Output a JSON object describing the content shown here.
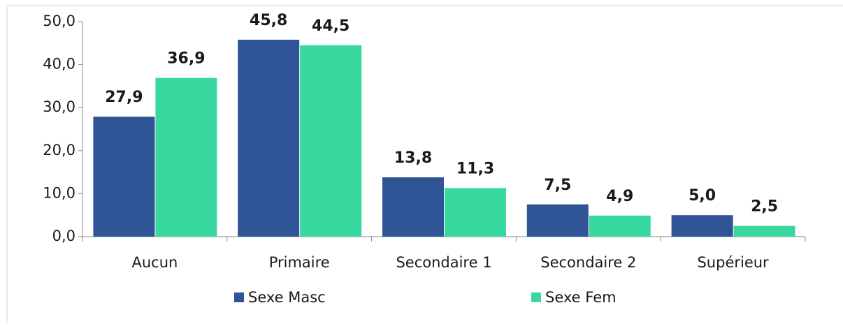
{
  "chart_data": {
    "type": "bar",
    "categories": [
      "Aucun",
      "Primaire",
      "Secondaire 1",
      "Secondaire 2",
      "Supérieur"
    ],
    "series": [
      {
        "name": "Sexe Masc",
        "color": "#2f5597",
        "values": [
          27.9,
          45.8,
          13.8,
          7.5,
          5.0
        ],
        "value_labels": [
          "27,9",
          "45,8",
          "13,8",
          "7,5",
          "5,0"
        ]
      },
      {
        "name": "Sexe Fem",
        "color": "#38d89e",
        "values": [
          36.9,
          44.5,
          11.3,
          4.9,
          2.5
        ],
        "value_labels": [
          "36,9",
          "44,5",
          "11,3",
          "4,9",
          "2,5"
        ]
      }
    ],
    "ylim": [
      0,
      50
    ],
    "yticks": [
      {
        "value": 0,
        "label": "0,0"
      },
      {
        "value": 10,
        "label": "10,0"
      },
      {
        "value": 20,
        "label": "20,0"
      },
      {
        "value": 30,
        "label": "30,0"
      },
      {
        "value": 40,
        "label": "40,0"
      },
      {
        "value": 50,
        "label": "50,0"
      }
    ],
    "grid": false,
    "legend": "bottom"
  }
}
